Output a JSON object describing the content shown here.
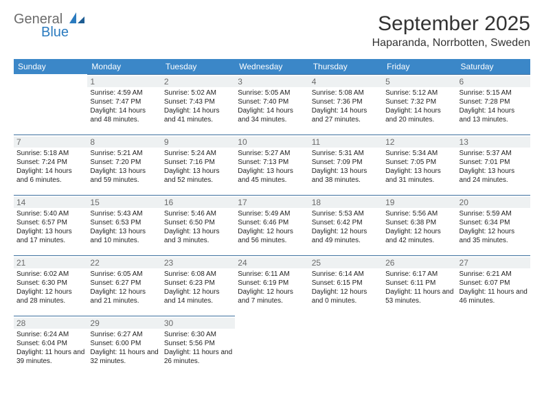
{
  "brand": {
    "name_top": "General",
    "name_bottom": "Blue"
  },
  "title": {
    "month": "September 2025",
    "location": "Haparanda, Norrbotten, Sweden"
  },
  "colors": {
    "header_bg": "#3b87c8",
    "header_text": "#ffffff",
    "rule": "#3b6f9e",
    "daynum_bg": "#eef1f2",
    "daynum_text": "#6a6a6a",
    "brand_gray": "#6b6b6b",
    "brand_blue": "#2b7bbf",
    "body_text": "#222222",
    "page_bg": "#ffffff"
  },
  "weekdays": [
    "Sunday",
    "Monday",
    "Tuesday",
    "Wednesday",
    "Thursday",
    "Friday",
    "Saturday"
  ],
  "layout": {
    "cols": 7,
    "rows": 5,
    "cell_font_pt": 10,
    "daynum_font_pt": 12
  },
  "weeks": [
    [
      null,
      {
        "n": "1",
        "sr": "4:59 AM",
        "ss": "7:47 PM",
        "dl": "14 hours and 48 minutes."
      },
      {
        "n": "2",
        "sr": "5:02 AM",
        "ss": "7:43 PM",
        "dl": "14 hours and 41 minutes."
      },
      {
        "n": "3",
        "sr": "5:05 AM",
        "ss": "7:40 PM",
        "dl": "14 hours and 34 minutes."
      },
      {
        "n": "4",
        "sr": "5:08 AM",
        "ss": "7:36 PM",
        "dl": "14 hours and 27 minutes."
      },
      {
        "n": "5",
        "sr": "5:12 AM",
        "ss": "7:32 PM",
        "dl": "14 hours and 20 minutes."
      },
      {
        "n": "6",
        "sr": "5:15 AM",
        "ss": "7:28 PM",
        "dl": "14 hours and 13 minutes."
      }
    ],
    [
      {
        "n": "7",
        "sr": "5:18 AM",
        "ss": "7:24 PM",
        "dl": "14 hours and 6 minutes."
      },
      {
        "n": "8",
        "sr": "5:21 AM",
        "ss": "7:20 PM",
        "dl": "13 hours and 59 minutes."
      },
      {
        "n": "9",
        "sr": "5:24 AM",
        "ss": "7:16 PM",
        "dl": "13 hours and 52 minutes."
      },
      {
        "n": "10",
        "sr": "5:27 AM",
        "ss": "7:13 PM",
        "dl": "13 hours and 45 minutes."
      },
      {
        "n": "11",
        "sr": "5:31 AM",
        "ss": "7:09 PM",
        "dl": "13 hours and 38 minutes."
      },
      {
        "n": "12",
        "sr": "5:34 AM",
        "ss": "7:05 PM",
        "dl": "13 hours and 31 minutes."
      },
      {
        "n": "13",
        "sr": "5:37 AM",
        "ss": "7:01 PM",
        "dl": "13 hours and 24 minutes."
      }
    ],
    [
      {
        "n": "14",
        "sr": "5:40 AM",
        "ss": "6:57 PM",
        "dl": "13 hours and 17 minutes."
      },
      {
        "n": "15",
        "sr": "5:43 AM",
        "ss": "6:53 PM",
        "dl": "13 hours and 10 minutes."
      },
      {
        "n": "16",
        "sr": "5:46 AM",
        "ss": "6:50 PM",
        "dl": "13 hours and 3 minutes."
      },
      {
        "n": "17",
        "sr": "5:49 AM",
        "ss": "6:46 PM",
        "dl": "12 hours and 56 minutes."
      },
      {
        "n": "18",
        "sr": "5:53 AM",
        "ss": "6:42 PM",
        "dl": "12 hours and 49 minutes."
      },
      {
        "n": "19",
        "sr": "5:56 AM",
        "ss": "6:38 PM",
        "dl": "12 hours and 42 minutes."
      },
      {
        "n": "20",
        "sr": "5:59 AM",
        "ss": "6:34 PM",
        "dl": "12 hours and 35 minutes."
      }
    ],
    [
      {
        "n": "21",
        "sr": "6:02 AM",
        "ss": "6:30 PM",
        "dl": "12 hours and 28 minutes."
      },
      {
        "n": "22",
        "sr": "6:05 AM",
        "ss": "6:27 PM",
        "dl": "12 hours and 21 minutes."
      },
      {
        "n": "23",
        "sr": "6:08 AM",
        "ss": "6:23 PM",
        "dl": "12 hours and 14 minutes."
      },
      {
        "n": "24",
        "sr": "6:11 AM",
        "ss": "6:19 PM",
        "dl": "12 hours and 7 minutes."
      },
      {
        "n": "25",
        "sr": "6:14 AM",
        "ss": "6:15 PM",
        "dl": "12 hours and 0 minutes."
      },
      {
        "n": "26",
        "sr": "6:17 AM",
        "ss": "6:11 PM",
        "dl": "11 hours and 53 minutes."
      },
      {
        "n": "27",
        "sr": "6:21 AM",
        "ss": "6:07 PM",
        "dl": "11 hours and 46 minutes."
      }
    ],
    [
      {
        "n": "28",
        "sr": "6:24 AM",
        "ss": "6:04 PM",
        "dl": "11 hours and 39 minutes."
      },
      {
        "n": "29",
        "sr": "6:27 AM",
        "ss": "6:00 PM",
        "dl": "11 hours and 32 minutes."
      },
      {
        "n": "30",
        "sr": "6:30 AM",
        "ss": "5:56 PM",
        "dl": "11 hours and 26 minutes."
      },
      null,
      null,
      null,
      null
    ]
  ],
  "labels": {
    "sunrise": "Sunrise:",
    "sunset": "Sunset:",
    "daylight": "Daylight:"
  }
}
